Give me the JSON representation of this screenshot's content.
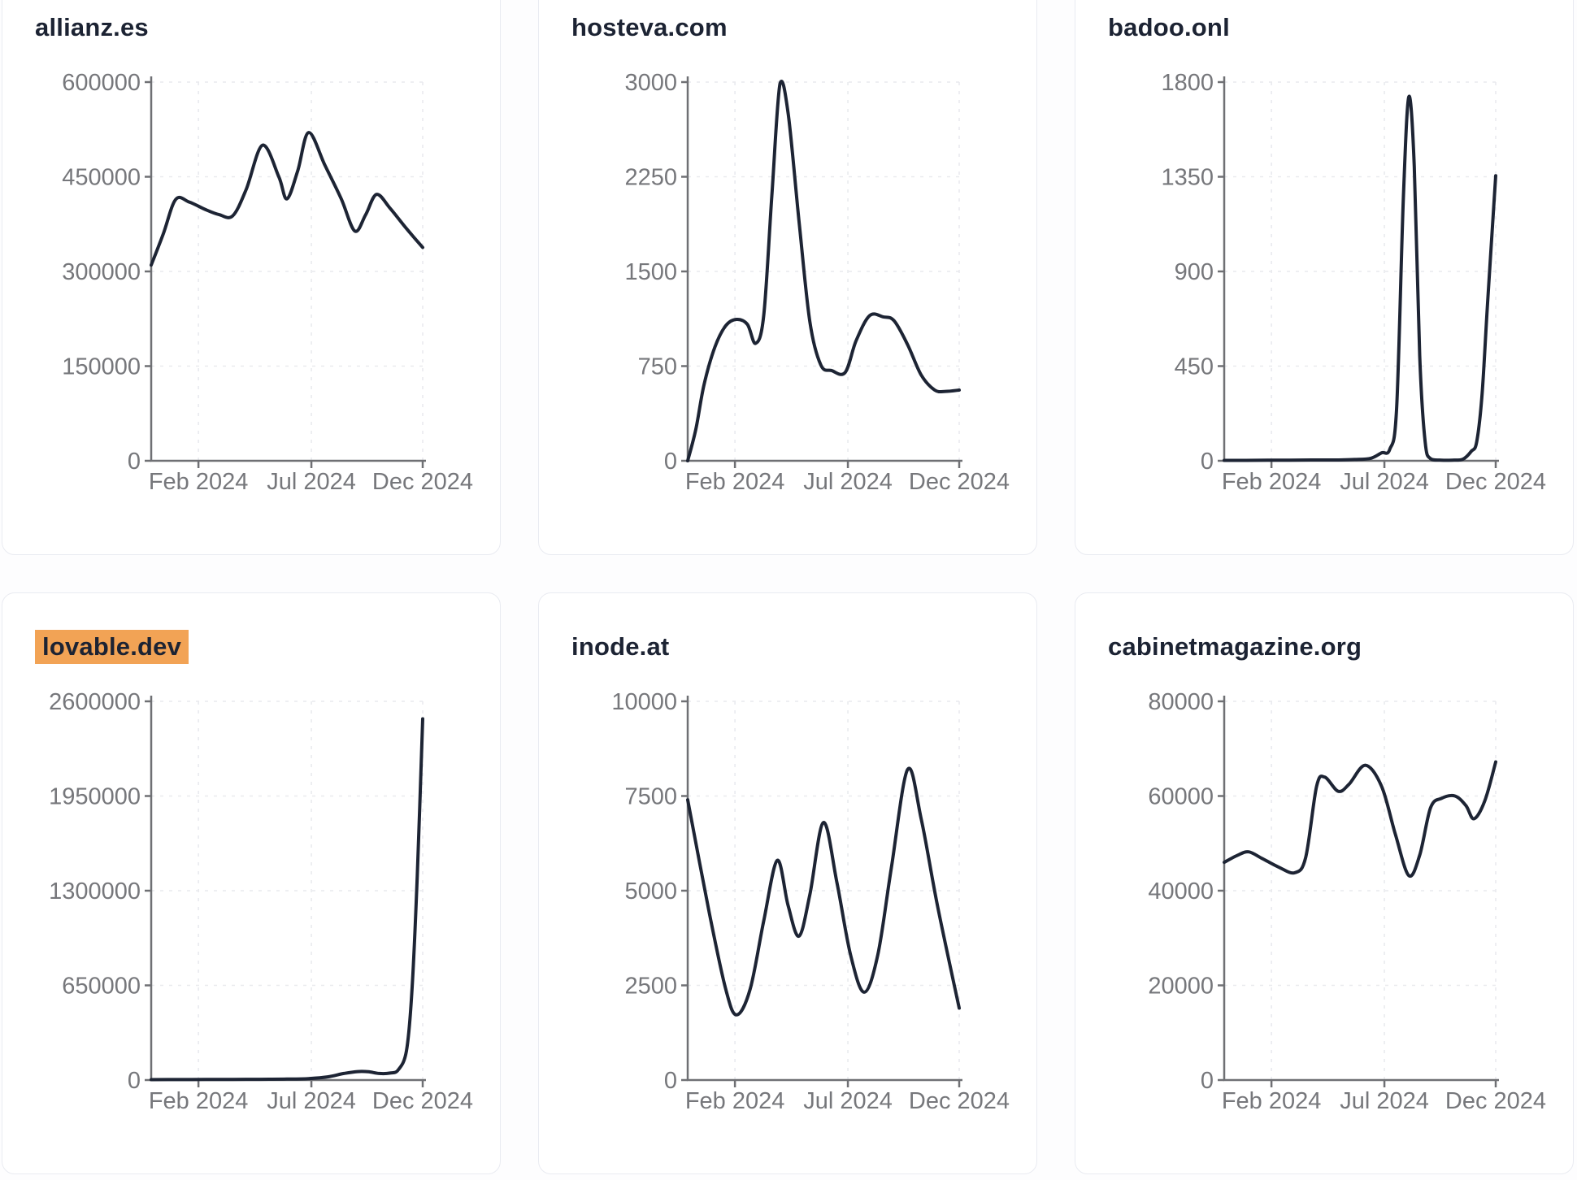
{
  "page": {
    "background": "#fdfdfe"
  },
  "styles": {
    "line_color": "#1d2434",
    "axis_color": "#6f7074",
    "grid_color": "#e9eaee",
    "tick_label_color": "#76777b",
    "title_color": "#1c2333",
    "highlight_color": "#f2a355",
    "card_border": "#e9ebf1",
    "card_bg": "#ffffff"
  },
  "chart_data": [
    {
      "type": "line",
      "title": "allianz.es",
      "highlighted": false,
      "x_ticks": [
        {
          "label": "Feb 2024",
          "t": 0.174
        },
        {
          "label": "Jul 2024",
          "t": 0.59
        },
        {
          "label": "Dec 2024",
          "t": 1
        }
      ],
      "y_ticks": [
        0,
        150000,
        300000,
        450000,
        600000
      ],
      "ylim": [
        0,
        600000
      ],
      "grid": true,
      "points": [
        [
          0,
          310000
        ],
        [
          0.045,
          360000
        ],
        [
          0.09,
          414000
        ],
        [
          0.14,
          410000
        ],
        [
          0.2,
          398000
        ],
        [
          0.25,
          390000
        ],
        [
          0.3,
          388000
        ],
        [
          0.35,
          430000
        ],
        [
          0.41,
          500000
        ],
        [
          0.47,
          450000
        ],
        [
          0.5,
          415000
        ],
        [
          0.54,
          460000
        ],
        [
          0.58,
          520000
        ],
        [
          0.64,
          468000
        ],
        [
          0.7,
          415000
        ],
        [
          0.75,
          364000
        ],
        [
          0.79,
          390000
        ],
        [
          0.83,
          422000
        ],
        [
          0.88,
          400000
        ],
        [
          0.94,
          368000
        ],
        [
          1,
          338000
        ]
      ]
    },
    {
      "type": "line",
      "title": "hosteva.com",
      "highlighted": false,
      "x_ticks": [
        {
          "label": "Feb 2024",
          "t": 0.174
        },
        {
          "label": "Jul 2024",
          "t": 0.59
        },
        {
          "label": "Dec 2024",
          "t": 1
        }
      ],
      "y_ticks": [
        0,
        750,
        1500,
        2250,
        3000
      ],
      "ylim": [
        0,
        3000
      ],
      "grid": true,
      "points": [
        [
          0,
          0
        ],
        [
          0.03,
          250
        ],
        [
          0.06,
          600
        ],
        [
          0.1,
          900
        ],
        [
          0.14,
          1070
        ],
        [
          0.18,
          1120
        ],
        [
          0.22,
          1080
        ],
        [
          0.25,
          930
        ],
        [
          0.28,
          1150
        ],
        [
          0.31,
          2100
        ],
        [
          0.34,
          2990
        ],
        [
          0.37,
          2750
        ],
        [
          0.41,
          1900
        ],
        [
          0.45,
          1100
        ],
        [
          0.49,
          760
        ],
        [
          0.53,
          715
        ],
        [
          0.58,
          700
        ],
        [
          0.62,
          950
        ],
        [
          0.67,
          1150
        ],
        [
          0.72,
          1140
        ],
        [
          0.76,
          1110
        ],
        [
          0.81,
          920
        ],
        [
          0.86,
          680
        ],
        [
          0.91,
          560
        ],
        [
          0.95,
          550
        ],
        [
          1,
          560
        ]
      ]
    },
    {
      "type": "line",
      "title": "badoo.onl",
      "highlighted": false,
      "x_ticks": [
        {
          "label": "Feb 2024",
          "t": 0.174
        },
        {
          "label": "Jul 2024",
          "t": 0.59
        },
        {
          "label": "Dec 2024",
          "t": 1
        }
      ],
      "y_ticks": [
        0,
        450,
        900,
        1350,
        1800
      ],
      "ylim": [
        0,
        1800
      ],
      "grid": true,
      "points": [
        [
          0,
          2
        ],
        [
          0.08,
          2
        ],
        [
          0.16,
          3
        ],
        [
          0.24,
          3
        ],
        [
          0.32,
          4
        ],
        [
          0.4,
          4
        ],
        [
          0.48,
          6
        ],
        [
          0.54,
          12
        ],
        [
          0.58,
          38
        ],
        [
          0.61,
          55
        ],
        [
          0.635,
          250
        ],
        [
          0.66,
          1250
        ],
        [
          0.68,
          1730
        ],
        [
          0.7,
          1400
        ],
        [
          0.72,
          500
        ],
        [
          0.74,
          90
        ],
        [
          0.76,
          10
        ],
        [
          0.8,
          3
        ],
        [
          0.84,
          3
        ],
        [
          0.88,
          8
        ],
        [
          0.91,
          45
        ],
        [
          0.93,
          90
        ],
        [
          0.95,
          320
        ],
        [
          0.97,
          750
        ],
        [
          1,
          1355
        ]
      ]
    },
    {
      "type": "line",
      "title": "lovable.dev",
      "highlighted": true,
      "x_ticks": [
        {
          "label": "Feb 2024",
          "t": 0.174
        },
        {
          "label": "Jul 2024",
          "t": 0.59
        },
        {
          "label": "Dec 2024",
          "t": 1
        }
      ],
      "y_ticks": [
        0,
        650000,
        1300000,
        1950000,
        2600000
      ],
      "ylim": [
        0,
        2600000
      ],
      "grid": true,
      "points": [
        [
          0,
          3000
        ],
        [
          0.1,
          3500
        ],
        [
          0.2,
          4000
        ],
        [
          0.3,
          4500
        ],
        [
          0.4,
          5000
        ],
        [
          0.5,
          6500
        ],
        [
          0.58,
          10000
        ],
        [
          0.65,
          22000
        ],
        [
          0.71,
          45000
        ],
        [
          0.76,
          58000
        ],
        [
          0.8,
          57000
        ],
        [
          0.84,
          45000
        ],
        [
          0.88,
          48000
        ],
        [
          0.91,
          70000
        ],
        [
          0.94,
          200000
        ],
        [
          0.96,
          600000
        ],
        [
          0.98,
          1400000
        ],
        [
          1,
          2480000
        ]
      ]
    },
    {
      "type": "line",
      "title": "inode.at",
      "highlighted": false,
      "x_ticks": [
        {
          "label": "Feb 2024",
          "t": 0.174
        },
        {
          "label": "Jul 2024",
          "t": 0.59
        },
        {
          "label": "Dec 2024",
          "t": 1
        }
      ],
      "y_ticks": [
        0,
        2500,
        5000,
        7500,
        10000
      ],
      "ylim": [
        0,
        10000
      ],
      "grid": true,
      "points": [
        [
          0,
          7400
        ],
        [
          0.08,
          4400
        ],
        [
          0.14,
          2400
        ],
        [
          0.18,
          1720
        ],
        [
          0.23,
          2400
        ],
        [
          0.28,
          4200
        ],
        [
          0.33,
          5800
        ],
        [
          0.37,
          4600
        ],
        [
          0.41,
          3800
        ],
        [
          0.45,
          4900
        ],
        [
          0.5,
          6800
        ],
        [
          0.55,
          5200
        ],
        [
          0.6,
          3300
        ],
        [
          0.65,
          2320
        ],
        [
          0.7,
          3300
        ],
        [
          0.75,
          5600
        ],
        [
          0.81,
          8200
        ],
        [
          0.86,
          6900
        ],
        [
          0.92,
          4600
        ],
        [
          1,
          1900
        ]
      ]
    },
    {
      "type": "line",
      "title": "cabinetmagazine.org",
      "highlighted": false,
      "x_ticks": [
        {
          "label": "Feb 2024",
          "t": 0.174
        },
        {
          "label": "Jul 2024",
          "t": 0.59
        },
        {
          "label": "Dec 2024",
          "t": 1
        }
      ],
      "y_ticks": [
        0,
        20000,
        40000,
        60000,
        80000
      ],
      "ylim": [
        0,
        80000
      ],
      "grid": true,
      "points": [
        [
          0,
          46000
        ],
        [
          0.05,
          47500
        ],
        [
          0.09,
          48200
        ],
        [
          0.14,
          46800
        ],
        [
          0.2,
          45000
        ],
        [
          0.26,
          43800
        ],
        [
          0.3,
          47000
        ],
        [
          0.34,
          62000
        ],
        [
          0.37,
          64000
        ],
        [
          0.42,
          61000
        ],
        [
          0.46,
          62500
        ],
        [
          0.52,
          66500
        ],
        [
          0.58,
          62000
        ],
        [
          0.63,
          52000
        ],
        [
          0.68,
          43200
        ],
        [
          0.72,
          47500
        ],
        [
          0.76,
          57500
        ],
        [
          0.8,
          59500
        ],
        [
          0.85,
          60000
        ],
        [
          0.89,
          58000
        ],
        [
          0.92,
          55200
        ],
        [
          0.96,
          59000
        ],
        [
          1,
          67200
        ]
      ]
    }
  ]
}
